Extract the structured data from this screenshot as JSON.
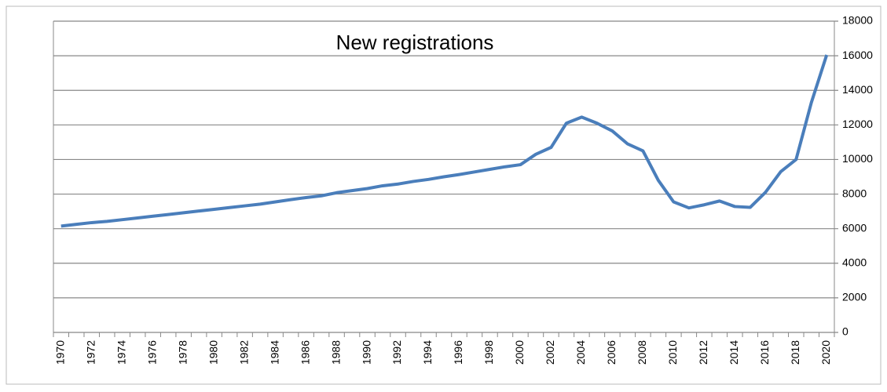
{
  "chart_data": {
    "type": "line",
    "title": "New registrations",
    "categories": [
      "1970",
      null,
      "1972",
      null,
      "1974",
      null,
      "1976",
      null,
      "1978",
      null,
      "1980",
      null,
      "1982",
      null,
      "1984",
      null,
      "1986",
      null,
      "1988",
      null,
      "1990",
      null,
      "1992",
      null,
      "1994",
      null,
      "1996",
      null,
      "1998",
      null,
      "2000",
      null,
      "2002",
      null,
      "2004",
      null,
      "2006",
      null,
      "2008",
      null,
      "2010",
      null,
      "2012",
      null,
      "2014",
      null,
      "2016",
      null,
      "2018",
      null,
      "2020"
    ],
    "series": [
      {
        "name": "New registrations",
        "color": "#4a7ebb",
        "values": [
          6150,
          6250,
          6350,
          6420,
          6520,
          6620,
          6720,
          6820,
          6920,
          7020,
          7120,
          7220,
          7320,
          7420,
          7550,
          7680,
          7800,
          7900,
          8080,
          8200,
          8320,
          8480,
          8580,
          8730,
          8850,
          9000,
          9130,
          9280,
          9430,
          9580,
          9700,
          10300,
          10700,
          12100,
          12450,
          12100,
          11650,
          10900,
          10500,
          8800,
          7550,
          7200,
          7380,
          7600,
          7280,
          7230,
          8100,
          9300,
          10000,
          13300,
          16050
        ]
      }
    ],
    "ylim": [
      0,
      18000
    ],
    "yticks": [
      0,
      2000,
      4000,
      6000,
      8000,
      10000,
      12000,
      14000,
      16000,
      18000
    ],
    "grid": true
  }
}
